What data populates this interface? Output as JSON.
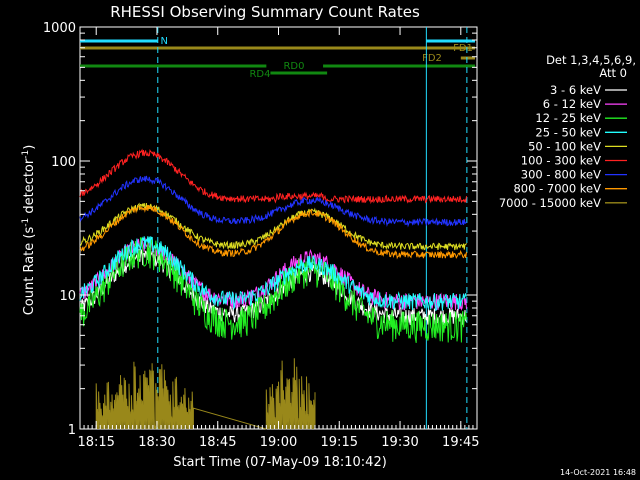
{
  "chart_data": {
    "type": "line",
    "title": "RHESSI Observing Summary Count Rates",
    "xlabel": "Start Time (07-May-09 18:10:42)",
    "ylabel_main": "Count Rate (s",
    "ylabel_sup1": "-1",
    "ylabel_mid": " detector",
    "ylabel_sup2": "-1",
    "ylabel_end": ")",
    "y_log": true,
    "ylim": [
      1,
      1000
    ],
    "xlim_minutes": [
      18.0,
      18.85
    ],
    "x_ticks": [
      {
        "label": "18:15",
        "m": 15
      },
      {
        "label": "18:30",
        "m": 30
      },
      {
        "label": "18:45",
        "m": 45
      },
      {
        "label": "19:00",
        "m": 60
      },
      {
        "label": "19:15",
        "m": 75
      },
      {
        "label": "19:30",
        "m": 90
      },
      {
        "label": "19:45",
        "m": 105
      }
    ],
    "y_ticks": [
      {
        "label": "1",
        "v": 1
      },
      {
        "label": "10",
        "v": 10
      },
      {
        "label": "100",
        "v": 100
      },
      {
        "label": "1000",
        "v": 1000
      }
    ],
    "legend_header": "Det 1,3,4,5,6,9,",
    "legend_header2": "Att 0",
    "legend_placement": "right",
    "series": [
      {
        "name": "3 - 6 keV",
        "color": "#ffffff"
      },
      {
        "name": "6 - 12 keV",
        "color": "#ff44ff"
      },
      {
        "name": "12 - 25 keV",
        "color": "#22ee22"
      },
      {
        "name": "25 - 50 keV",
        "color": "#22ffff"
      },
      {
        "name": "50 - 100 keV",
        "color": "#dddd22"
      },
      {
        "name": "100 - 300 keV",
        "color": "#ff2222"
      },
      {
        "name": "300 - 800 keV",
        "color": "#2233ff"
      },
      {
        "name": "800 - 7000 keV",
        "color": "#ff9900"
      },
      {
        "name": "7000 - 15000 keV",
        "color": "#99881a"
      }
    ],
    "flags": [
      {
        "label": "N",
        "color": "#22ddff"
      },
      {
        "label": "FD1",
        "color": "#99881a"
      },
      {
        "label": "FD2",
        "color": "#99881a"
      },
      {
        "label": "RD0",
        "color": "#118811"
      },
      {
        "label": "RD4",
        "color": "#118811"
      }
    ],
    "orbit_lines_minutes": [
      30.2,
      96.5
    ],
    "orbit_dash_minutes": [
      30.2,
      106.5
    ]
  },
  "footer_date": "14-Oct-2021 16:48"
}
